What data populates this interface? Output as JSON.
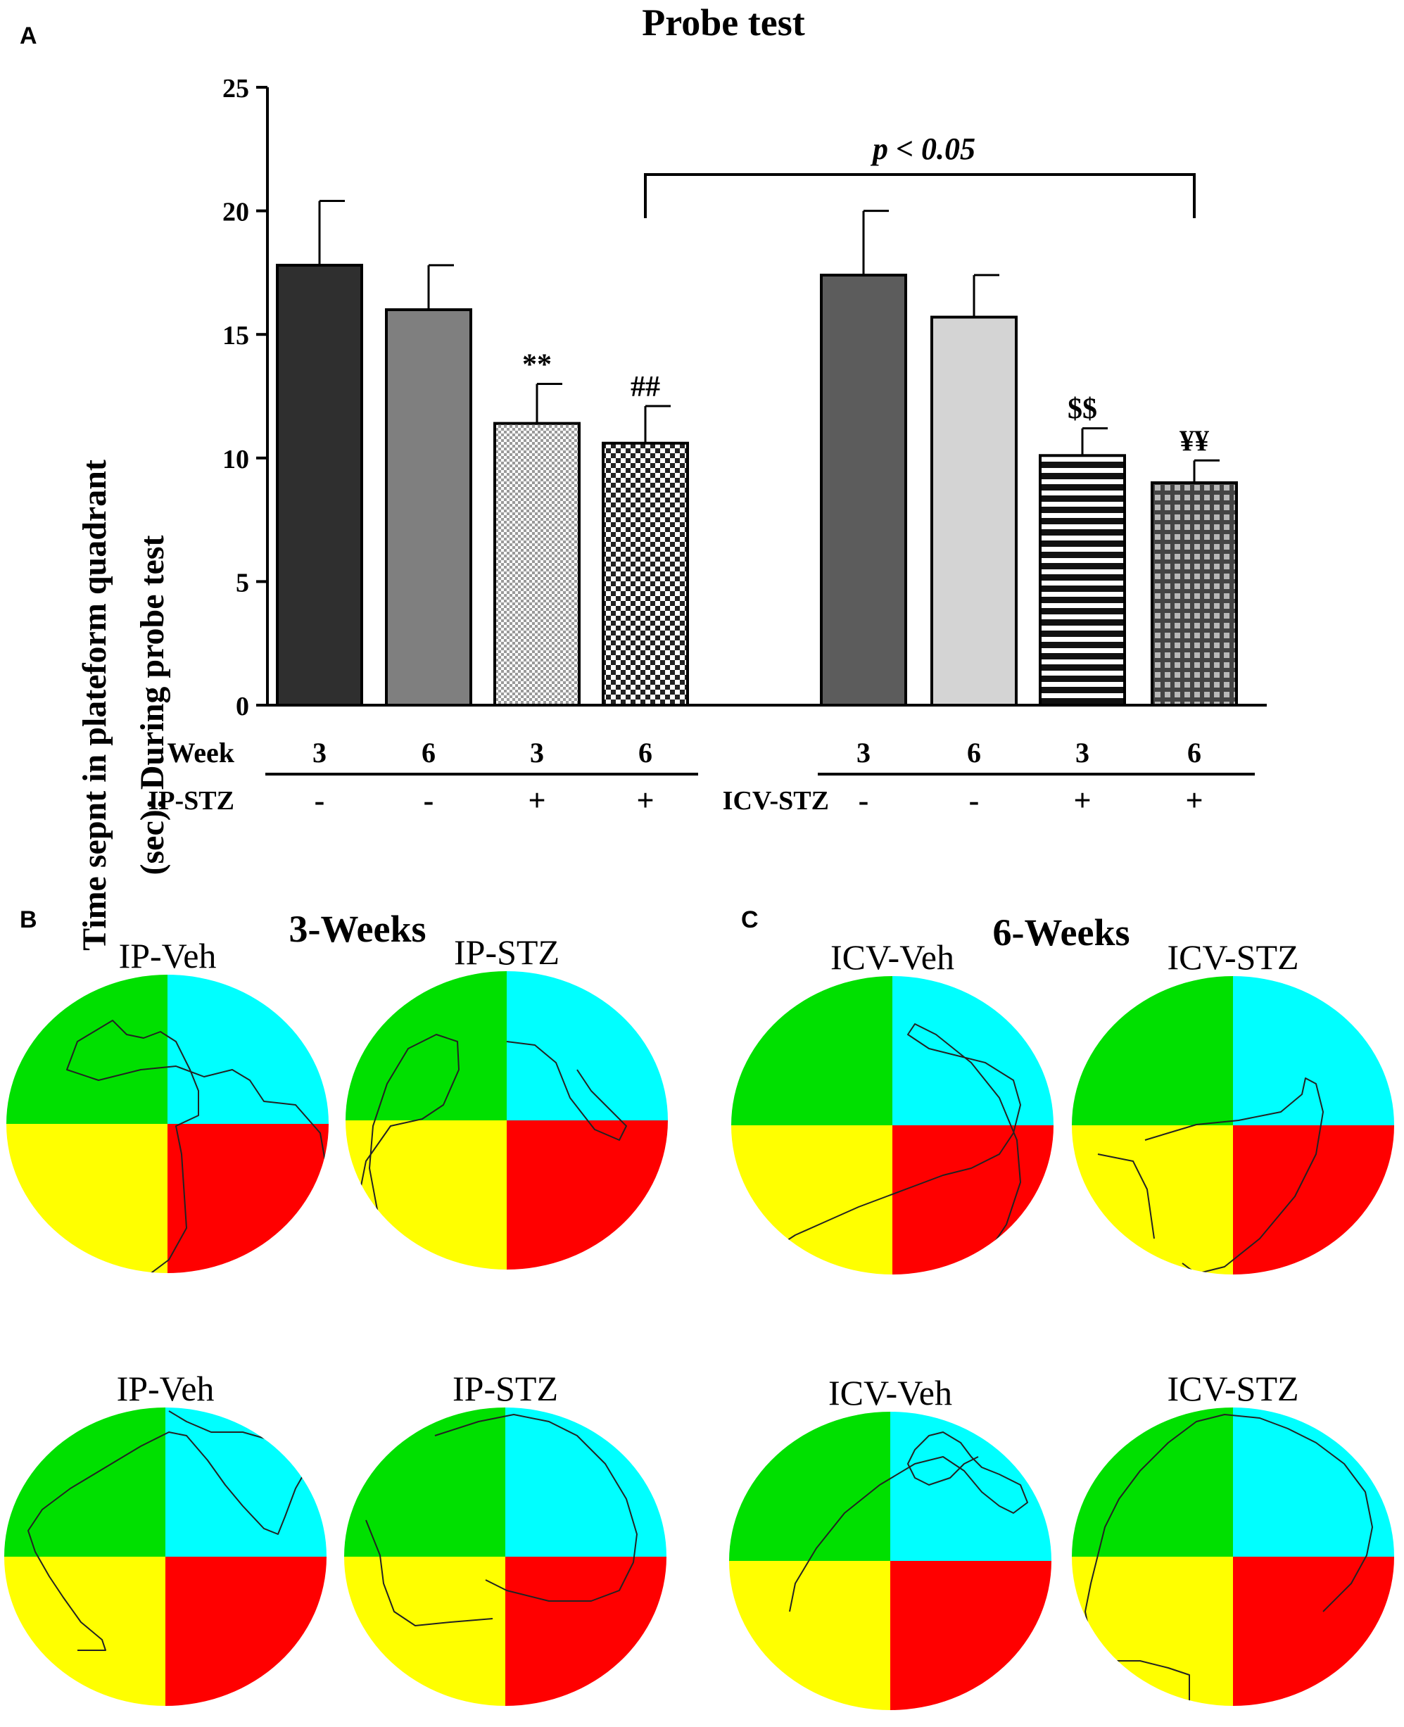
{
  "panel_labels": {
    "a": "A",
    "b": "B",
    "c": "C"
  },
  "chart_data": {
    "type": "bar",
    "title": "Probe test",
    "ylabel_line1": "Time sepnt in plateform quadrant",
    "ylabel_line2": "(sec): During probe test",
    "xlabel": "",
    "ylim": [
      0,
      25
    ],
    "yticks": [
      0,
      5,
      10,
      15,
      20,
      25
    ],
    "bars": [
      {
        "group": "IP-STZ",
        "week": "3",
        "stz": "-",
        "value": 17.8,
        "sem": 2.6,
        "fill": "#2f2f2f",
        "pattern": "solid",
        "mark": ""
      },
      {
        "group": "IP-STZ",
        "week": "6",
        "stz": "-",
        "value": 16.0,
        "sem": 1.8,
        "fill": "#7f7f7f",
        "pattern": "solid",
        "mark": ""
      },
      {
        "group": "IP-STZ",
        "week": "3",
        "stz": "+",
        "value": 11.4,
        "sem": 1.6,
        "fill": "#d8d8d8",
        "pattern": "fine-check",
        "mark": "**"
      },
      {
        "group": "IP-STZ",
        "week": "6",
        "stz": "+",
        "value": 10.6,
        "sem": 1.5,
        "fill": "#444444",
        "pattern": "checker",
        "mark": "##"
      },
      {
        "group": "ICV-STZ",
        "week": "3",
        "stz": "-",
        "value": 17.4,
        "sem": 2.6,
        "fill": "#5c5c5c",
        "pattern": "solid",
        "mark": ""
      },
      {
        "group": "ICV-STZ",
        "week": "6",
        "stz": "-",
        "value": 15.7,
        "sem": 1.7,
        "fill": "#d4d4d4",
        "pattern": "solid",
        "mark": ""
      },
      {
        "group": "ICV-STZ",
        "week": "3",
        "stz": "+",
        "value": 10.1,
        "sem": 1.1,
        "fill": "#111111",
        "pattern": "h-stripes",
        "mark": "$$"
      },
      {
        "group": "ICV-STZ",
        "week": "6",
        "stz": "+",
        "value": 9.0,
        "sem": 0.9,
        "fill": "#555555",
        "pattern": "grid",
        "mark": "¥¥"
      }
    ],
    "row_labels": {
      "week": "Week",
      "ip": "IP-STZ",
      "icv": "ICV-STZ"
    },
    "comparison": {
      "label": "p < 0.05",
      "from_bar": 3,
      "to_bar": 7
    }
  },
  "tracks": {
    "panel_b_title": "3-Weeks",
    "panel_c_title": "6-Weeks",
    "quadrant_colors": {
      "top_left": "#00e000",
      "top_right": "#00ffff",
      "bottom_left": "#ffff00",
      "bottom_right": "#ff0000"
    },
    "pools": [
      {
        "label": "IP-Veh"
      },
      {
        "label": "IP-STZ"
      },
      {
        "label": "ICV-Veh"
      },
      {
        "label": "ICV-STZ"
      },
      {
        "label": "IP-Veh"
      },
      {
        "label": "IP-STZ"
      },
      {
        "label": "ICV-Veh"
      },
      {
        "label": "ICV-STZ"
      }
    ]
  }
}
